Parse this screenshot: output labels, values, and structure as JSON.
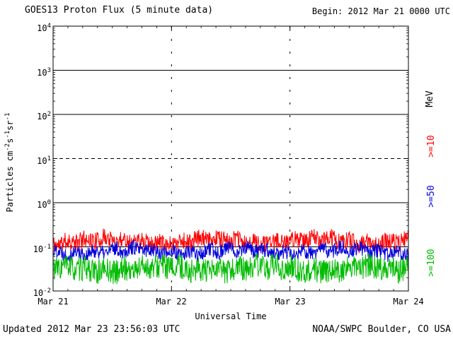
{
  "header": {
    "title": "GOES13 Proton Flux (5 minute data)",
    "begin_label": "Begin: 2012 Mar 21 0000 UTC"
  },
  "footer": {
    "updated": "Updated 2012 Mar 23 23:56:03 UTC",
    "source": "NOAA/SWPC Boulder, CO USA"
  },
  "chart_data": {
    "type": "line",
    "title": "GOES13 Proton Flux (5 minute data)",
    "xlabel": "Universal Time",
    "ylabel": "Particles cm-2s-1sr-1",
    "ylabel_parts": [
      "Particles cm",
      "-2",
      "s",
      "-1",
      "sr",
      "-1"
    ],
    "right_axis_label": "MeV",
    "x_ticks": [
      "Mar 21",
      "Mar 22",
      "Mar 23",
      "Mar 24"
    ],
    "x_range_days": 3,
    "sample_every_minutes": 5,
    "y_log_range": [
      -2,
      4
    ],
    "y_tick_exponents": [
      4,
      3,
      2,
      1,
      0,
      -1,
      -2
    ],
    "dashed_gridline_exponent": 1,
    "grid": "solid horizontal lines at each decade, dashed line at 10^1, sparse dashed vertical lines at day boundaries",
    "series": [
      {
        "name": ">=10",
        "color": "#ff0000",
        "mean_log10": -0.87,
        "noise_log10": 0.2,
        "spike_chance": 0.006,
        "spike_log10": 0.25,
        "seed": 11,
        "approx_flux_range": [
          0.08,
          0.3
        ]
      },
      {
        "name": ">=50",
        "color": "#0000dd",
        "mean_log10": -1.1,
        "noise_log10": 0.17,
        "spike_chance": 0,
        "spike_log10": 0,
        "seed": 22,
        "approx_flux_range": [
          0.05,
          0.12
        ]
      },
      {
        "name": ">=100",
        "color": "#00bb00",
        "mean_log10": -1.5,
        "noise_log10": 0.28,
        "spike_chance": 0,
        "spike_log10": 0,
        "seed": 33,
        "approx_flux_range": [
          0.012,
          0.06
        ]
      }
    ]
  }
}
